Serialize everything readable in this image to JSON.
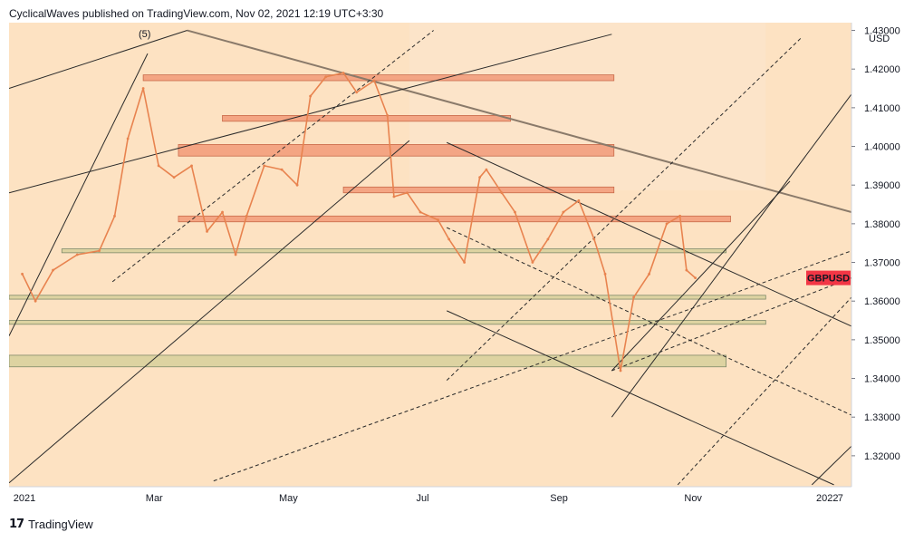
{
  "header": {
    "publisher_line": "CyclicalWaves published on TradingView.com, Nov 02, 2021 12:19 UTC+3:30"
  },
  "footer": {
    "logo_glyph": "17",
    "brand": "TradingView",
    "logo_icon": "tradingview-logo-icon"
  },
  "chart_data": {
    "type": "line",
    "symbol": "GBPUSD",
    "currency": "USD",
    "wave_label": "(5)",
    "colors": {
      "background": "#fde2c2",
      "background_light": "#fbe6d0",
      "price_line": "#e8834f",
      "badge": "#f23645",
      "zone_red": "#f0906e",
      "zone_green": "#c8c98a",
      "channel_line": "#2a2a2a",
      "resistance_line": "#8a7a6a"
    },
    "x_tick_labels": [
      "2021",
      "Mar",
      "May",
      "Jul",
      "Sep",
      "Nov",
      "2022",
      "7"
    ],
    "y_tick_labels": [
      "1.43000",
      "1.42000",
      "1.41000",
      "1.40000",
      "1.39000",
      "1.38000",
      "1.37000",
      "1.36000",
      "1.35000",
      "1.34000",
      "1.33000",
      "1.32000"
    ],
    "ylim": [
      1.312,
      1.432
    ],
    "x_range": [
      "2020-12-25",
      "2022-01-12"
    ],
    "last_price_label": "GBPUSD",
    "last_price": 1.366,
    "series": [
      {
        "name": "GBPUSD",
        "x": [
          "2020-12-31",
          "2021-01-06",
          "2021-01-14",
          "2021-01-25",
          "2021-02-04",
          "2021-02-11",
          "2021-02-17",
          "2021-02-24",
          "2021-03-03",
          "2021-03-10",
          "2021-03-18",
          "2021-03-25",
          "2021-04-01",
          "2021-04-07",
          "2021-04-12",
          "2021-04-20",
          "2021-04-28",
          "2021-05-05",
          "2021-05-11",
          "2021-05-18",
          "2021-05-26",
          "2021-06-01",
          "2021-06-09",
          "2021-06-15",
          "2021-06-18",
          "2021-06-24",
          "2021-06-30",
          "2021-07-08",
          "2021-07-13",
          "2021-07-20",
          "2021-07-27",
          "2021-07-30",
          "2021-08-06",
          "2021-08-12",
          "2021-08-20",
          "2021-08-27",
          "2021-09-03",
          "2021-09-10",
          "2021-09-17",
          "2021-09-22",
          "2021-09-29",
          "2021-10-05",
          "2021-10-12",
          "2021-10-20",
          "2021-10-26",
          "2021-10-29",
          "2021-11-02"
        ],
        "values": [
          1.367,
          1.36,
          1.368,
          1.372,
          1.373,
          1.382,
          1.402,
          1.415,
          1.395,
          1.392,
          1.395,
          1.378,
          1.383,
          1.372,
          1.382,
          1.395,
          1.394,
          1.39,
          1.413,
          1.418,
          1.419,
          1.414,
          1.417,
          1.408,
          1.387,
          1.388,
          1.383,
          1.381,
          1.376,
          1.37,
          1.392,
          1.394,
          1.388,
          1.383,
          1.37,
          1.376,
          1.383,
          1.386,
          1.376,
          1.367,
          1.342,
          1.361,
          1.367,
          1.38,
          1.382,
          1.368,
          1.366
        ]
      }
    ],
    "horizontal_zones": [
      {
        "kind": "red",
        "from": "2021-02-24",
        "to": "2021-09-26",
        "low": 1.417,
        "high": 1.4185
      },
      {
        "kind": "red",
        "from": "2021-04-01",
        "to": "2021-08-10",
        "low": 1.4065,
        "high": 1.408
      },
      {
        "kind": "red",
        "from": "2021-03-12",
        "to": "2021-09-26",
        "low": 1.3975,
        "high": 1.4005
      },
      {
        "kind": "red",
        "from": "2021-05-26",
        "to": "2021-09-26",
        "low": 1.388,
        "high": 1.3895
      },
      {
        "kind": "red",
        "from": "2021-03-12",
        "to": "2021-11-18",
        "low": 1.3805,
        "high": 1.382
      },
      {
        "kind": "green",
        "from": "2021-01-18",
        "to": "2021-11-16",
        "low": 1.3725,
        "high": 1.3735
      },
      {
        "kind": "green",
        "from": "2020-12-25",
        "to": "2021-12-04",
        "low": 1.3605,
        "high": 1.3615
      },
      {
        "kind": "green",
        "from": "2020-12-25",
        "to": "2021-12-04",
        "low": 1.354,
        "high": 1.355
      },
      {
        "kind": "green",
        "from": "2020-12-25",
        "to": "2021-11-16",
        "low": 1.343,
        "high": 1.346
      }
    ],
    "trend_lines": [
      {
        "style": "solid",
        "from": [
          "2021-07-12",
          1.401
        ],
        "to": [
          "2022-01-12",
          1.3535
        ]
      },
      {
        "style": "dashed",
        "from": [
          "2021-07-12",
          1.379
        ],
        "to": [
          "2022-01-12",
          1.3305
        ]
      },
      {
        "style": "solid",
        "from": [
          "2021-07-12",
          1.3575
        ],
        "to": [
          "2022-01-04",
          1.3125
        ]
      },
      {
        "style": "resistance",
        "from": [
          "2021-03-16",
          1.43
        ],
        "to": [
          "2022-01-12",
          1.383
        ]
      },
      {
        "style": "solid",
        "from": [
          "2020-12-25",
          1.351
        ],
        "to": [
          "2021-02-26",
          1.424
        ]
      },
      {
        "style": "solid",
        "from": [
          "2020-12-25",
          1.415
        ],
        "to": [
          "2021-03-16",
          1.43
        ]
      },
      {
        "style": "solid",
        "from": [
          "2020-12-25",
          1.313
        ],
        "to": [
          "2021-06-25",
          1.4015
        ]
      },
      {
        "style": "dashed",
        "from": [
          "2021-02-10",
          1.365
        ],
        "to": [
          "2021-07-06",
          1.43
        ]
      },
      {
        "style": "solid",
        "from": [
          "2020-12-25",
          1.388
        ],
        "to": [
          "2021-09-25",
          1.429
        ]
      },
      {
        "style": "dashed",
        "from": [
          "2021-07-12",
          1.3395
        ],
        "to": [
          "2021-12-20",
          1.428
        ]
      },
      {
        "style": "solid",
        "from": [
          "2021-09-25",
          1.33
        ],
        "to": [
          "2022-01-12",
          1.4135
        ]
      },
      {
        "style": "solid",
        "from": [
          "2021-09-25",
          1.342
        ],
        "to": [
          "2021-12-15",
          1.391
        ]
      },
      {
        "style": "dashed",
        "from": [
          "2021-03-28",
          1.3135
        ],
        "to": [
          "2022-01-12",
          1.373
        ]
      },
      {
        "style": "dashed",
        "from": [
          "2021-09-25",
          1.342
        ],
        "to": [
          "2022-01-12",
          1.366
        ]
      },
      {
        "style": "dashed",
        "from": [
          "2021-10-25",
          1.3125
        ],
        "to": [
          "2022-01-12",
          1.361
        ]
      },
      {
        "style": "solid",
        "from": [
          "2021-12-25",
          1.3125
        ],
        "to": [
          "2022-01-12",
          1.3225
        ]
      }
    ],
    "grid": false,
    "legend": "none"
  }
}
